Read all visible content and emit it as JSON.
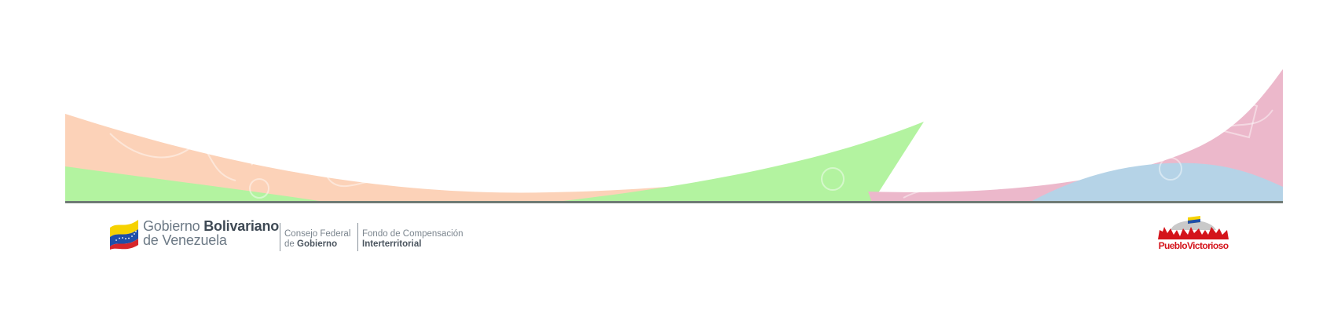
{
  "header_art": {
    "colors": {
      "peach": "#fcd2b8",
      "green": "#b3f3a0",
      "pink": "#ecb8cb",
      "blue": "#b5d3e7",
      "baseline": "#6f7b75"
    }
  },
  "footer": {
    "gov_logo": {
      "line1_light": "Gobierno ",
      "line1_bold": "Bolivariano",
      "line2": "de Venezuela"
    },
    "consejo": {
      "line1": "Consejo Federal",
      "line2_light": "de ",
      "line2_bold": "Gobierno"
    },
    "fondo": {
      "line1": "Fondo de Compensación",
      "line2": "Interterritorial"
    },
    "pueblo_logo": {
      "text": "PuebloVictorioso"
    }
  }
}
